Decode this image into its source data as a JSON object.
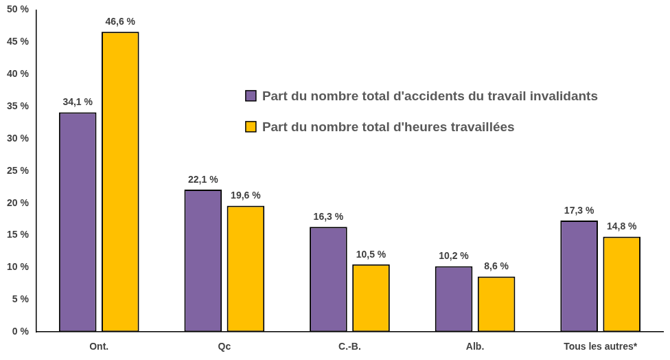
{
  "chart_data": {
    "type": "bar",
    "categories": [
      "Ont.",
      "Qc",
      "C.-B.",
      "Alb.",
      "Tous les autres*"
    ],
    "series": [
      {
        "name": "Part du nombre total d'accidents du travail invalidants",
        "color": "#8064A2",
        "values": [
          34.1,
          22.1,
          16.3,
          10.2,
          17.3
        ],
        "value_labels": [
          "34,1 %",
          "22,1 %",
          "16,3 %",
          "10,2 %",
          "17,3 %"
        ]
      },
      {
        "name": "Part du nombre total d'heures travaillées",
        "color": "#FFC000",
        "values": [
          46.6,
          19.6,
          10.5,
          8.6,
          14.8
        ],
        "value_labels": [
          "46,6 %",
          "19,6 %",
          "10,5 %",
          "8,6 %",
          "14,8 %"
        ]
      }
    ],
    "ylim": [
      0,
      50
    ],
    "yticks": [
      {
        "value": 0,
        "label": "0 %"
      },
      {
        "value": 5,
        "label": "5 %"
      },
      {
        "value": 10,
        "label": "10 %"
      },
      {
        "value": 15,
        "label": "15 %"
      },
      {
        "value": 20,
        "label": "20 %"
      },
      {
        "value": 25,
        "label": "25 %"
      },
      {
        "value": 30,
        "label": "30 %"
      },
      {
        "value": 35,
        "label": "35 %"
      },
      {
        "value": 40,
        "label": "40 %"
      },
      {
        "value": 45,
        "label": "45 %"
      },
      {
        "value": 50,
        "label": "50 %"
      }
    ],
    "grid": false,
    "legend": "top-right",
    "data_labels": true
  }
}
